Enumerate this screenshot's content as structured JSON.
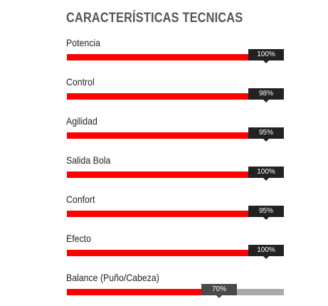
{
  "section": {
    "title": "CARACTERÍSTICAS TECNICAS"
  },
  "colors": {
    "fill": "#ff0000",
    "track": "#aaaaaa",
    "tooltip": "#222222",
    "tooltip_muted": "#4a4a4a",
    "title": "#555555"
  },
  "stats": [
    {
      "label": "Potencia",
      "value": 100,
      "value_text": "100%"
    },
    {
      "label": "Control",
      "value": 98,
      "value_text": "98%"
    },
    {
      "label": "Agilidad",
      "value": 95,
      "value_text": "95%"
    },
    {
      "label": "Salida Bola",
      "value": 100,
      "value_text": "100%"
    },
    {
      "label": "Confort",
      "value": 95,
      "value_text": "95%"
    },
    {
      "label": "Efecto",
      "value": 100,
      "value_text": "100%"
    },
    {
      "label": "Balance (Puño/Cabeza)",
      "value": 70,
      "value_text": "70%"
    }
  ]
}
